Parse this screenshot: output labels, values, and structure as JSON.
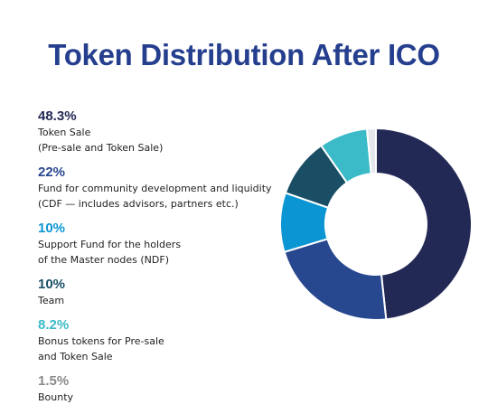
{
  "title": "Token Distribution After ICO",
  "chart_data": {
    "type": "pie",
    "title": "Token Distribution After ICO",
    "slices": [
      {
        "pct_label": "48.3%",
        "value": 48.3,
        "label": "Token Sale\n(Pre-sale and Token Sale)",
        "color": "#232955"
      },
      {
        "pct_label": "22%",
        "value": 22,
        "label": "Fund for community development and liquidity\n(CDF — includes advisors, partners etc.)",
        "color": "#27478f"
      },
      {
        "pct_label": "10%",
        "value": 10,
        "label": "Support Fund for the holders\nof the Master nodes (NDF)",
        "color": "#0b95d3"
      },
      {
        "pct_label": "10%",
        "value": 10,
        "label": "Team",
        "color": "#1a4e65"
      },
      {
        "pct_label": "8.2%",
        "value": 8.2,
        "label": "Bonus tokens for Pre-sale\nand Token Sale",
        "color": "#3bbac8"
      },
      {
        "pct_label": "1.5%",
        "value": 1.5,
        "label": "Bounty",
        "color": "#e3e7ec"
      }
    ],
    "pct_colors": [
      "#232955",
      "#27478f",
      "#0b95d3",
      "#1a4e65",
      "#3bbac8",
      "#8a8a8a"
    ]
  }
}
